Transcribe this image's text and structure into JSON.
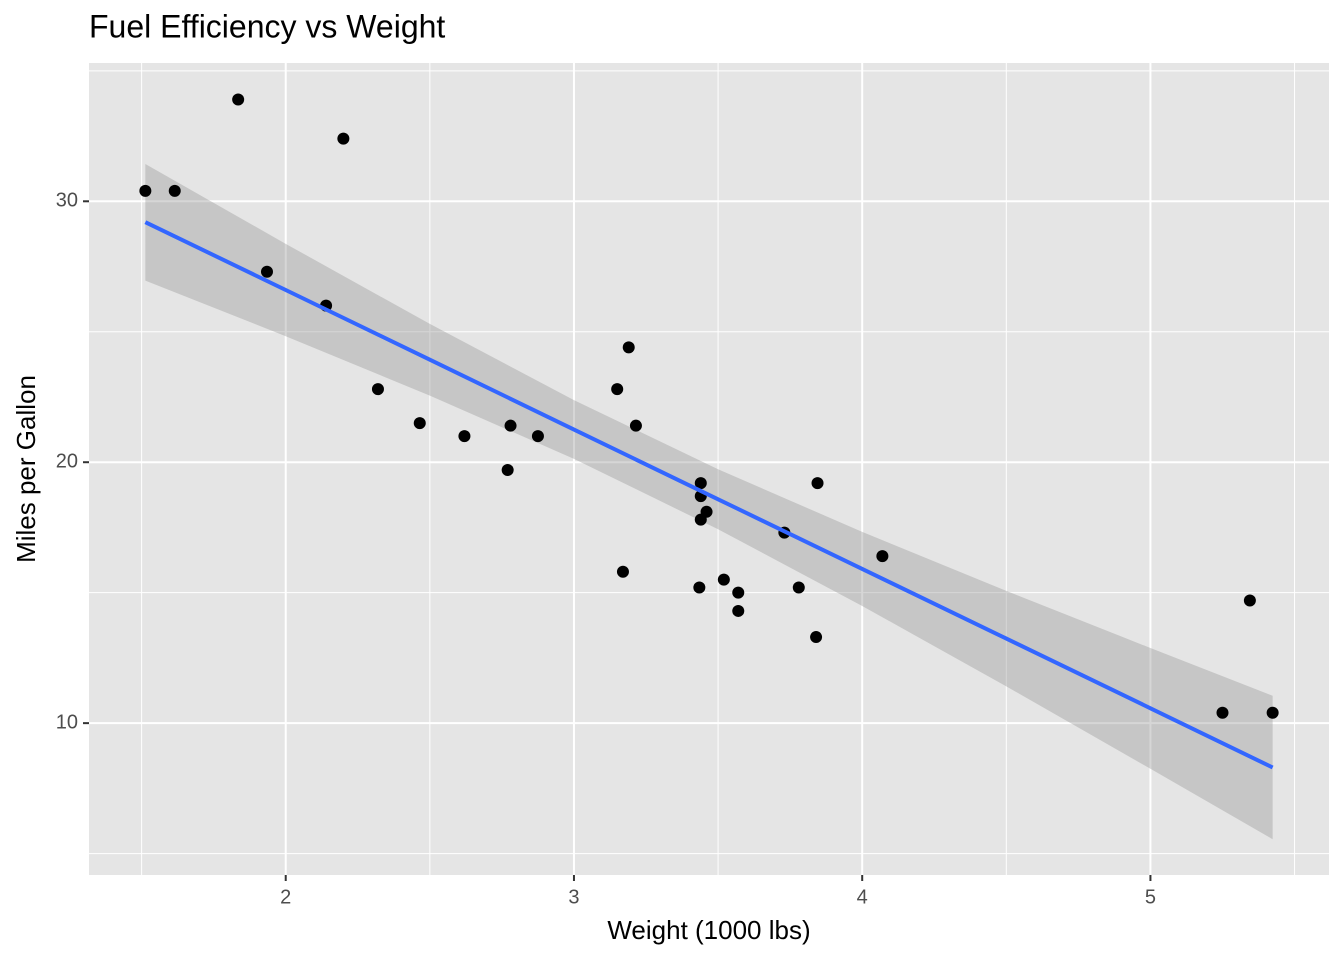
{
  "chart_data": {
    "type": "scatter",
    "title": "Fuel Efficiency vs Weight",
    "x_label": "Weight (1000 lbs)",
    "y_label": "Miles per Gallon",
    "x": [
      2.62,
      2.875,
      2.32,
      3.215,
      3.44,
      3.46,
      3.57,
      3.19,
      3.15,
      3.44,
      3.44,
      4.07,
      3.73,
      3.78,
      5.25,
      5.424,
      5.345,
      2.2,
      1.615,
      1.835,
      2.465,
      3.52,
      3.435,
      3.84,
      3.845,
      1.935,
      2.14,
      1.513,
      3.17,
      2.77,
      3.57,
      2.78
    ],
    "values": [
      21.0,
      21.0,
      22.8,
      21.4,
      18.7,
      18.1,
      14.3,
      24.4,
      22.8,
      19.2,
      17.8,
      16.4,
      17.3,
      15.2,
      10.4,
      10.4,
      14.7,
      32.4,
      30.4,
      33.9,
      21.5,
      15.5,
      15.2,
      13.3,
      19.2,
      27.3,
      26.0,
      30.4,
      15.8,
      19.7,
      15.0,
      21.4
    ],
    "color": "#000000",
    "fit": {
      "color": "#3366FF",
      "band_color": "#999999",
      "x": [
        1.513,
        2,
        2.5,
        3,
        3.5,
        4,
        4.5,
        5,
        5.424
      ],
      "values": [
        29.2,
        26.6,
        23.93,
        21.25,
        18.58,
        15.91,
        13.24,
        10.57,
        8.3
      ],
      "lower": [
        26.96,
        24.83,
        22.55,
        20.13,
        17.43,
        14.49,
        11.41,
        8.25,
        5.55
      ],
      "upper": [
        31.43,
        28.37,
        25.3,
        22.38,
        19.73,
        17.33,
        15.07,
        12.88,
        11.05
      ]
    },
    "xlim": [
      1.3175,
      5.6195
    ],
    "ylim": [
      4.18,
      35.3
    ],
    "xticks": [
      2,
      3,
      4,
      5
    ],
    "yticks": [
      10,
      20,
      30
    ],
    "x_minor_ticks": [
      1.5,
      2.5,
      3.5,
      4.5,
      5.5
    ],
    "y_minor_ticks": [
      5,
      15,
      25,
      35
    ],
    "grid": true
  }
}
